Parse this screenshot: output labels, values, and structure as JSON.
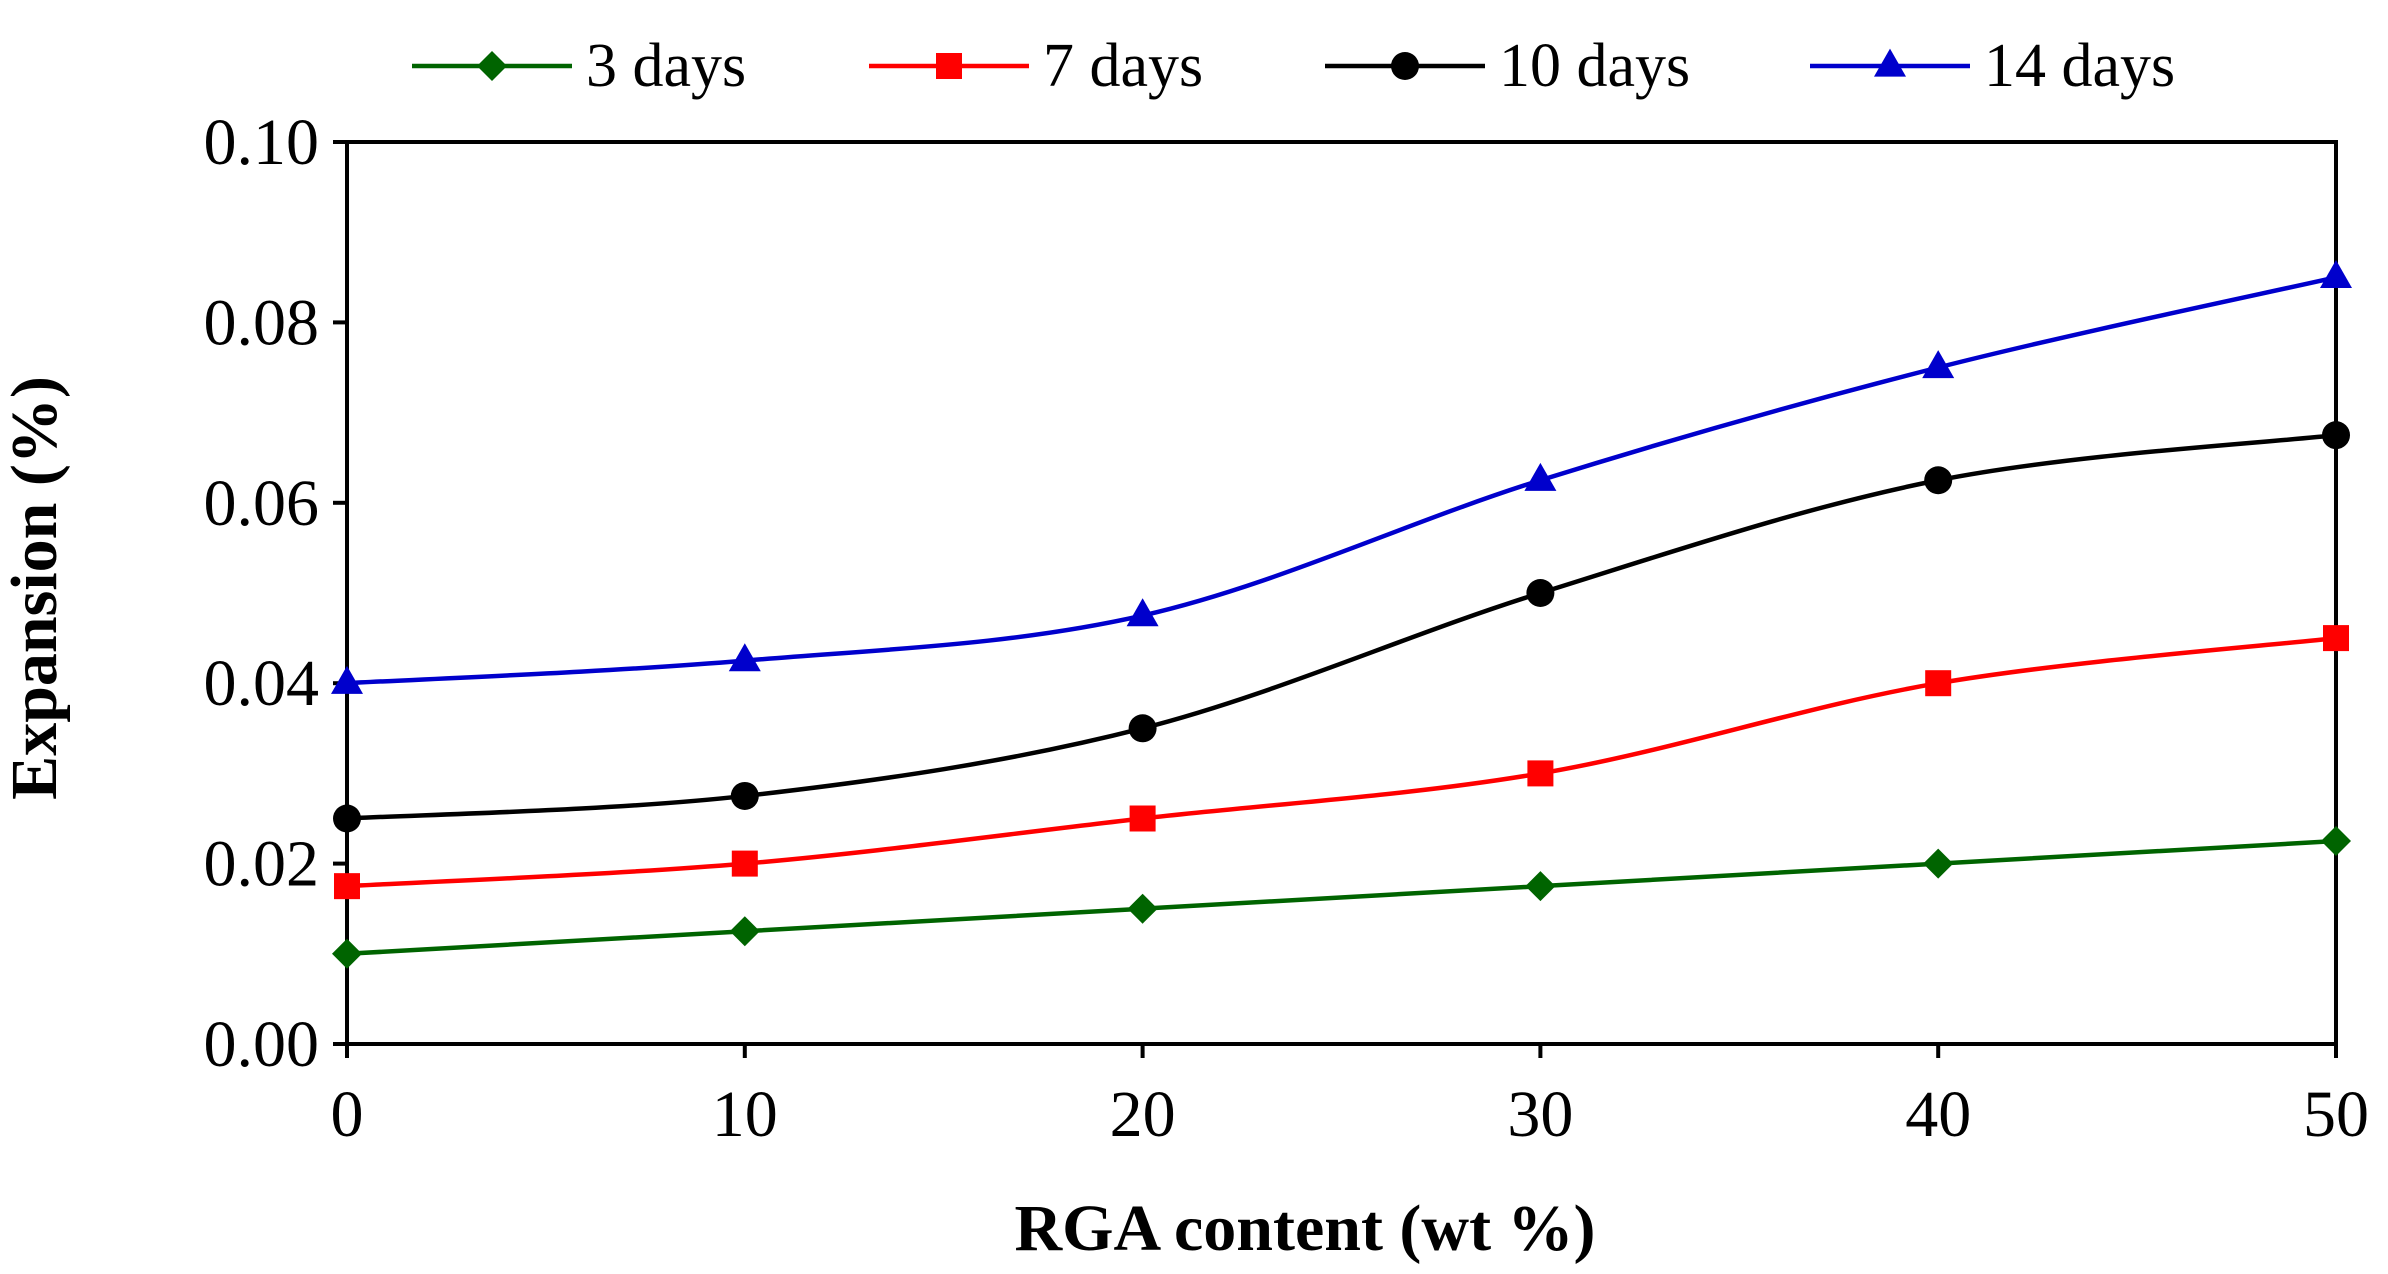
{
  "chart_data": {
    "type": "line",
    "title": "",
    "xlabel": "RGA content (wt %)",
    "ylabel": "Expansion (%)",
    "x": [
      0,
      10,
      20,
      30,
      40,
      50
    ],
    "xlim": [
      0,
      50
    ],
    "ylim": [
      0,
      0.1
    ],
    "xticks": [
      0,
      10,
      20,
      30,
      40,
      50
    ],
    "xtick_labels": [
      "0",
      "10",
      "20",
      "30",
      "40",
      "50"
    ],
    "yticks": [
      0,
      0.02,
      0.04,
      0.06,
      0.08,
      0.1
    ],
    "ytick_labels": [
      "0.00",
      "0.02",
      "0.04",
      "0.06",
      "0.08",
      "0.10"
    ],
    "grid": false,
    "legend_position": "top",
    "series": [
      {
        "name": "3 days",
        "color": "#006400",
        "marker": "diamond",
        "smooth": false,
        "values": [
          0.01,
          0.0125,
          0.015,
          0.0175,
          0.02,
          0.0225
        ]
      },
      {
        "name": "7 days",
        "color": "#FF0000",
        "marker": "square",
        "smooth": true,
        "values": [
          0.0175,
          0.02,
          0.025,
          0.03,
          0.04,
          0.045
        ]
      },
      {
        "name": "10 days",
        "color": "#000000",
        "marker": "circle",
        "smooth": true,
        "values": [
          0.025,
          0.0275,
          0.035,
          0.05,
          0.0625,
          0.0675
        ]
      },
      {
        "name": "14 days",
        "color": "#0000CC",
        "marker": "triangle",
        "smooth": true,
        "values": [
          0.04,
          0.0425,
          0.0475,
          0.0625,
          0.075,
          0.085
        ]
      }
    ]
  }
}
